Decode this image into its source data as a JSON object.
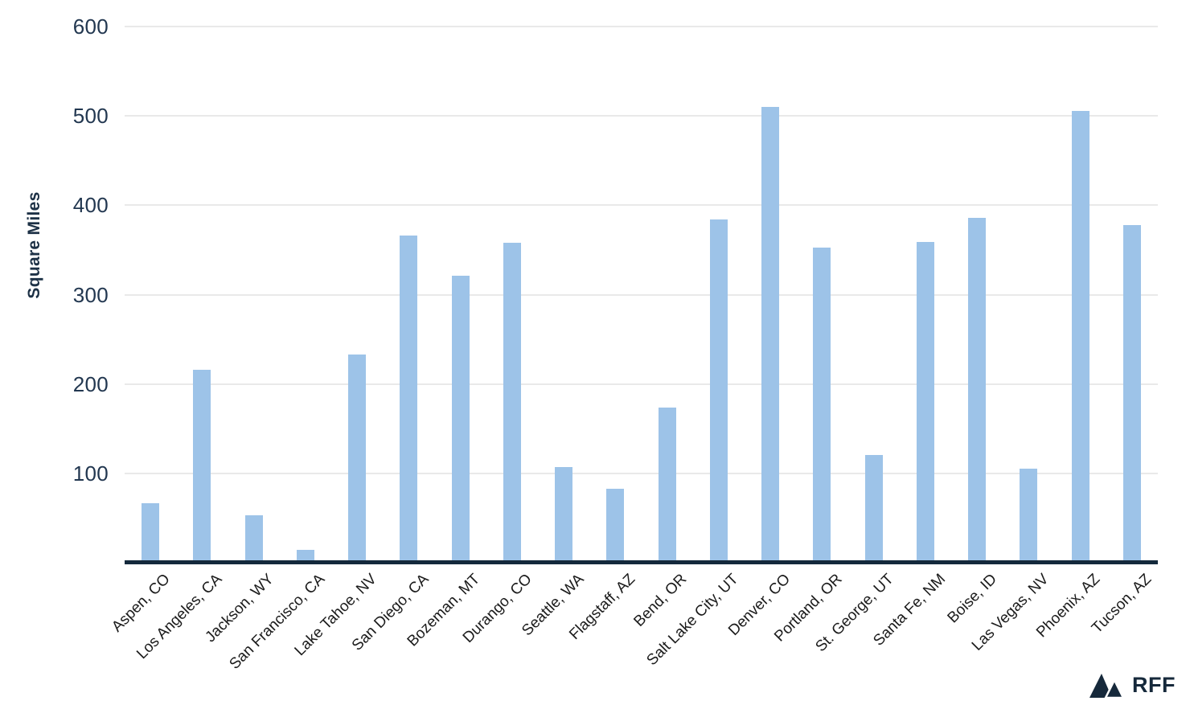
{
  "chart_data": {
    "type": "bar",
    "title": "",
    "xlabel": "",
    "ylabel": "Square Miles",
    "ylim": [
      0,
      600
    ],
    "yticks": [
      100,
      200,
      300,
      400,
      500,
      600
    ],
    "grid": true,
    "legend": false,
    "categories": [
      "Aspen, CO",
      "Los Angeles, CA",
      "Jackson, WY",
      "San Francisco, CA",
      "Lake Tahoe, NV",
      "San Diego, CA",
      "Bozeman, MT",
      "Durango, CO",
      "Seattle, WA",
      "Flagstaff, AZ",
      "Bend, OR",
      "Salt Lake City, UT",
      "Denver, CO",
      "Portland, OR",
      "St. George, UT",
      "Santa Fe, NM",
      "Boise, ID",
      "Las Vegas, NV",
      "Phoenix, AZ",
      "Tucson, AZ"
    ],
    "values": [
      67,
      216,
      53,
      14,
      233,
      366,
      321,
      358,
      107,
      83,
      174,
      384,
      510,
      353,
      121,
      359,
      386,
      105,
      506,
      378
    ]
  },
  "branding": {
    "logo_text": "RFF",
    "logo_icon": "mountains-icon"
  },
  "colors": {
    "bar": "#9DC3E8",
    "gridline": "#E9E9E9",
    "axis_line": "#14293C",
    "y_tick_text": "#223750",
    "x_tick_text": "#1B1B1B",
    "logo": "#16293B",
    "background": "#FFFFFF"
  }
}
